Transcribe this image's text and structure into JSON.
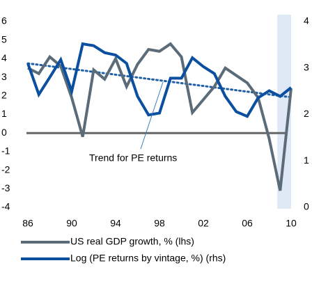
{
  "chart_data": {
    "type": "line",
    "x": [
      1986,
      1987,
      1988,
      1989,
      1990,
      1991,
      1992,
      1993,
      1994,
      1995,
      1996,
      1997,
      1998,
      1999,
      2000,
      2001,
      2002,
      2003,
      2004,
      2005,
      2006,
      2007,
      2008,
      2009,
      2010
    ],
    "series": [
      {
        "name": "US real GDP growth, % (lhs)",
        "color": "#5b6b78",
        "values": [
          3.5,
          3.2,
          4.1,
          3.6,
          1.9,
          -0.2,
          3.4,
          2.9,
          4.0,
          2.5,
          3.7,
          4.5,
          4.4,
          4.8,
          4.1,
          1.1,
          1.8,
          2.5,
          3.5,
          3.1,
          2.7,
          1.9,
          -0.3,
          -3.1,
          2.4
        ]
      },
      {
        "name": "Log (PE returns by vintage, %) (rhs)",
        "color": "#0a4fa0",
        "axis": "y2",
        "values": [
          3.1,
          2.43,
          2.8,
          3.18,
          2.5,
          3.52,
          3.48,
          3.33,
          3.28,
          3.1,
          2.39,
          1.99,
          2.03,
          2.78,
          2.78,
          3.22,
          3.03,
          2.88,
          2.39,
          2.06,
          1.96,
          2.36,
          2.51,
          2.39,
          2.58
        ]
      }
    ],
    "trend": {
      "label": "Trend for PE returns",
      "x": [
        1986,
        2010
      ],
      "values": [
        3.1,
        2.37
      ],
      "color": "#1f5fa8"
    },
    "shade": [
      2009,
      2010
    ],
    "xlim": [
      1986,
      2010
    ],
    "xticks": [
      {
        "value": 1986,
        "label": "86"
      },
      {
        "value": 1990,
        "label": "90"
      },
      {
        "value": 1994,
        "label": "94"
      },
      {
        "value": 1998,
        "label": "98"
      },
      {
        "value": 2002,
        "label": "02"
      },
      {
        "value": 2006,
        "label": "06"
      },
      {
        "value": 2010,
        "label": "10"
      }
    ],
    "ylim": [
      -4,
      6
    ],
    "yticks": [
      -4,
      -3,
      -2,
      -1,
      0,
      1,
      2,
      3,
      4,
      5,
      6
    ],
    "y2lim": [
      0,
      4
    ],
    "y2ticks": [
      0,
      1,
      2,
      3,
      4
    ]
  }
}
